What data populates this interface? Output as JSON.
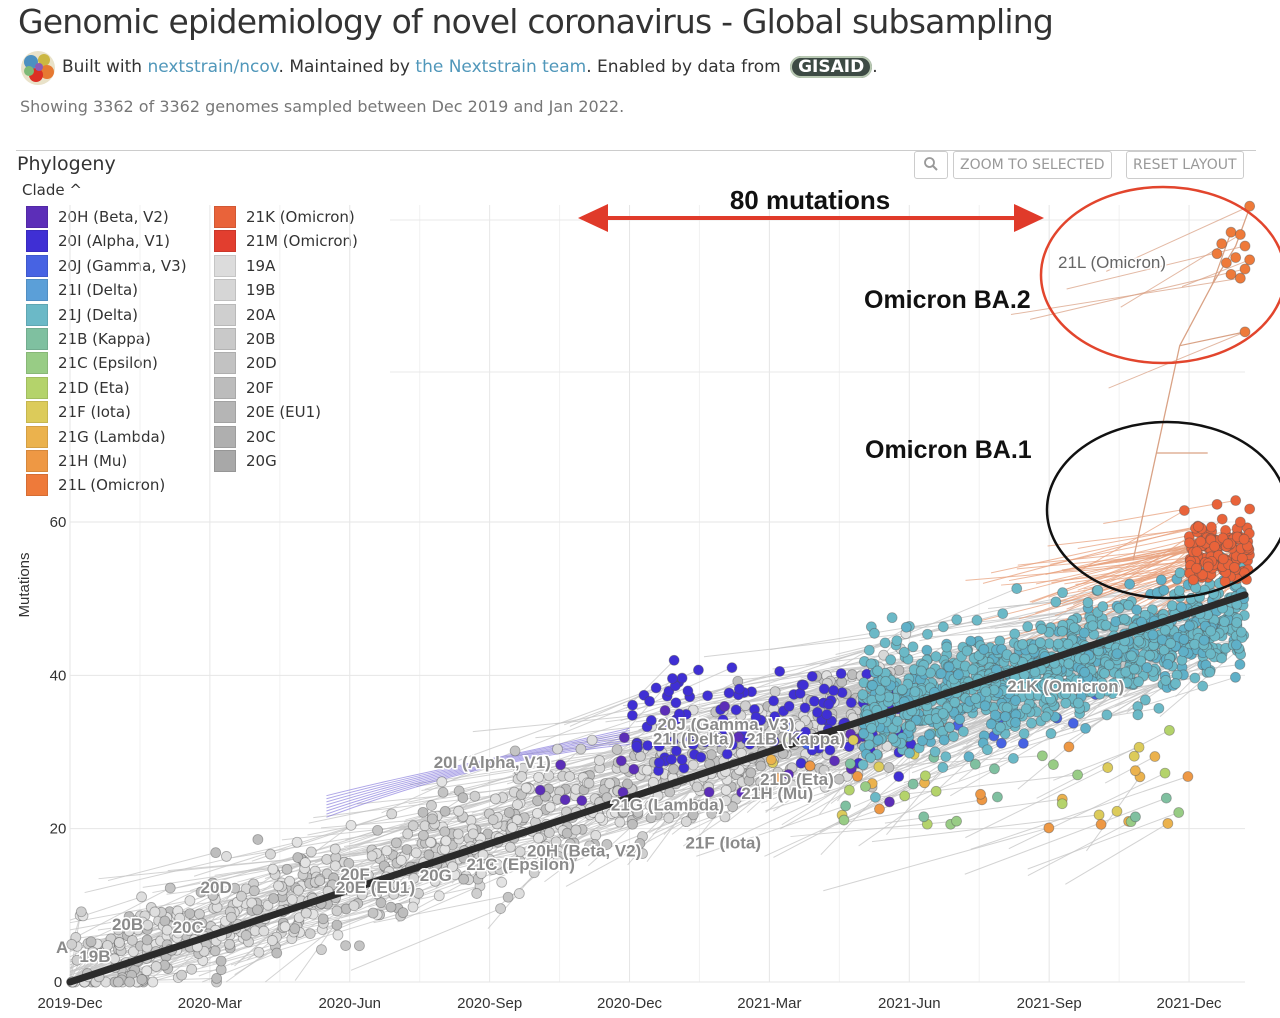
{
  "header": {
    "title": "Genomic epidemiology of novel coronavirus - Global subsampling",
    "built_with": "Built with ",
    "link1": "nextstrain/ncov",
    "maintained": ". Maintained by ",
    "link2": "the Nextstrain team",
    "enabled": ". Enabled by data from ",
    "gisaid": "GISAID",
    "period": ".",
    "showing": "Showing 3362 of 3362 genomes sampled between Dec 2019 and Jan 2022."
  },
  "panel": {
    "title": "Phylogeny",
    "clade_toggle": "Clade ^",
    "zoom_icon": "search-icon",
    "zoom_selected": "ZOOM TO SELECTED",
    "reset_layout": "RESET LAYOUT"
  },
  "legend": {
    "col1": [
      {
        "label": "20H (Beta, V2)",
        "color": "#5C2EB8"
      },
      {
        "label": "20I (Alpha, V1)",
        "color": "#3F2FD4"
      },
      {
        "label": "20J (Gamma, V3)",
        "color": "#4763E3"
      },
      {
        "label": "21I (Delta)",
        "color": "#5B9FD8"
      },
      {
        "label": "21J (Delta)",
        "color": "#6BB9C7"
      },
      {
        "label": "21B (Kappa)",
        "color": "#7FC0A0"
      },
      {
        "label": "21C (Epsilon)",
        "color": "#98CC85"
      },
      {
        "label": "21D (Eta)",
        "color": "#B4D36B"
      },
      {
        "label": "21F (Iota)",
        "color": "#DCCB5A"
      },
      {
        "label": "21G (Lambda)",
        "color": "#EBB24D"
      },
      {
        "label": "21H (Mu)",
        "color": "#EE9844"
      },
      {
        "label": "21L (Omicron)",
        "color": "#EE7A3A"
      }
    ],
    "col2": [
      {
        "label": "21K (Omicron)",
        "color": "#E9633A"
      },
      {
        "label": "21M (Omicron)",
        "color": "#E23E2F"
      },
      {
        "label": "19A",
        "color": "#DCDCDC"
      },
      {
        "label": "19B",
        "color": "#D6D6D6"
      },
      {
        "label": "20A",
        "color": "#CFCFCF"
      },
      {
        "label": "20B",
        "color": "#C9C9C9"
      },
      {
        "label": "20D",
        "color": "#C2C2C2"
      },
      {
        "label": "20F",
        "color": "#BCBCBC"
      },
      {
        "label": "20E (EU1)",
        "color": "#B5B5B5"
      },
      {
        "label": "20C",
        "color": "#AFAFAF"
      },
      {
        "label": "20G",
        "color": "#A8A8A8"
      }
    ]
  },
  "chart_data": {
    "type": "scatter",
    "title": "",
    "xlabel": "",
    "ylabel": "Mutations",
    "x_ticks": [
      "2019-Dec",
      "2020-Mar",
      "2020-Jun",
      "2020-Sep",
      "2020-Dec",
      "2021-Mar",
      "2021-Jun",
      "2021-Sep",
      "2021-Dec"
    ],
    "y_ticks": [
      0,
      20,
      40,
      60
    ],
    "ylim": [
      0,
      60
    ],
    "grid": true,
    "trend_line": {
      "from": {
        "x": "2019-Dec",
        "y": 0
      },
      "to": {
        "x": "2022-Jan",
        "y": 50.5
      }
    },
    "clade_labels": [
      {
        "label": "A",
        "x": "2019-Dec",
        "y": 4
      },
      {
        "label": "19B",
        "x": "2020-Jan",
        "y": 3
      },
      {
        "label": "20B",
        "x": "2020-Jan",
        "y": 8
      },
      {
        "label": "20C",
        "x": "2020-Feb",
        "y": 7
      },
      {
        "label": "20D",
        "x": "2020-Mar",
        "y": 12
      },
      {
        "label": "20F",
        "x": "2020-May",
        "y": 14
      },
      {
        "label": "20E (EU1)",
        "x": "2020-May",
        "y": 12
      },
      {
        "label": "20G",
        "x": "2020-Jun",
        "y": 14
      },
      {
        "label": "21C (Epsilon)",
        "x": "2020-Jul",
        "y": 15
      },
      {
        "label": "20H (Beta, V2)",
        "x": "2020-Jul",
        "y": 17
      },
      {
        "label": "20I (Alpha, V1)",
        "x": "2020-Jun",
        "y": 28
      },
      {
        "label": "21G (Lambda)",
        "x": "2020-Sep",
        "y": 22
      },
      {
        "label": "21F (Iota)",
        "x": "2020-Oct",
        "y": 18
      },
      {
        "label": "21D (Eta)",
        "x": "2020-Dec",
        "y": 26
      },
      {
        "label": "21H (Mu)",
        "x": "2020-Dec",
        "y": 24
      },
      {
        "label": "20J (Gamma, V3)",
        "x": "2020-Oct",
        "y": 33
      },
      {
        "label": "21I (Delta)",
        "x": "2020-Oct",
        "y": 31
      },
      {
        "label": "21B (Kappa)",
        "x": "2020-Nov",
        "y": 31
      },
      {
        "label": "21K (Omicron)",
        "x": "2021-Apr",
        "y": 38
      },
      {
        "label": "21L (Omicron)",
        "x": "2021-Oct",
        "y": 94
      }
    ],
    "annotations": [
      {
        "text": "80 mutations"
      },
      {
        "text": "Omicron BA.2"
      },
      {
        "text": "Omicron BA.1"
      }
    ]
  }
}
